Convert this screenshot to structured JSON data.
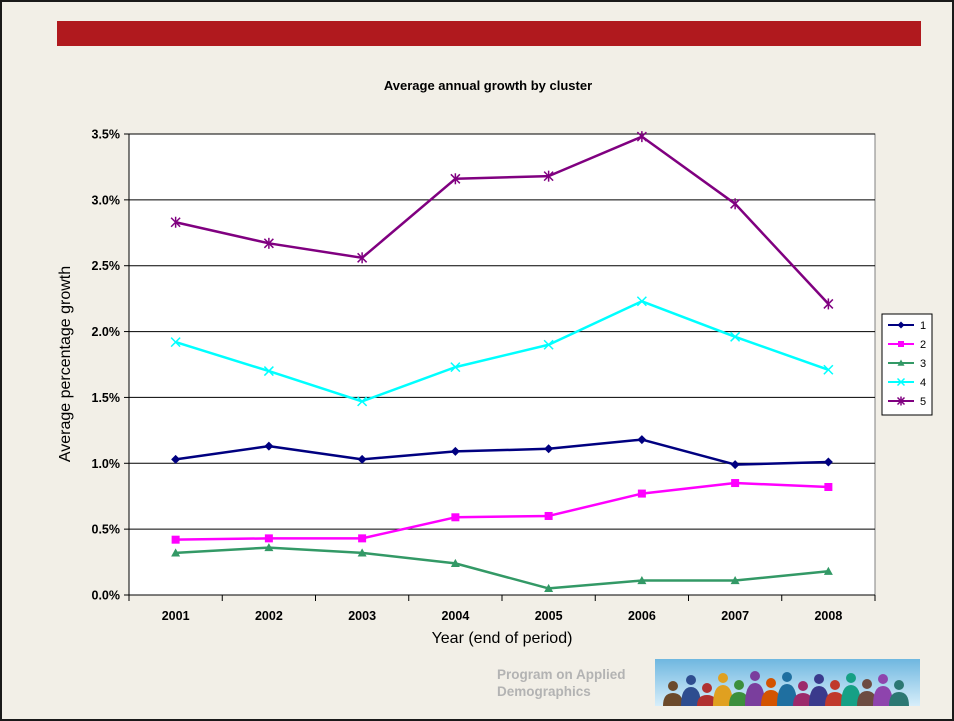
{
  "footer": {
    "org_line1": "Program on Applied",
    "org_line2": "Demographics"
  },
  "chart_data": {
    "type": "line",
    "title": "Average annual growth by cluster",
    "xlabel": "Year (end of period)",
    "ylabel": "Average percentage growth",
    "categories": [
      "2001",
      "2002",
      "2003",
      "2004",
      "2005",
      "2006",
      "2007",
      "2008"
    ],
    "ylim": [
      0,
      3.5
    ],
    "y_ticks": [
      "0.0%",
      "0.5%",
      "1.0%",
      "1.5%",
      "2.0%",
      "2.5%",
      "3.0%",
      "3.5%"
    ],
    "y_unit": "%",
    "grid": "horizontal",
    "legend_position": "right",
    "series": [
      {
        "name": "1",
        "color": "#000080",
        "marker": "diamond",
        "values": [
          1.03,
          1.13,
          1.03,
          1.09,
          1.11,
          1.18,
          0.99,
          1.01
        ]
      },
      {
        "name": "2",
        "color": "#ff00ff",
        "marker": "square",
        "values": [
          0.42,
          0.43,
          0.43,
          0.59,
          0.6,
          0.77,
          0.85,
          0.82
        ]
      },
      {
        "name": "3",
        "color": "#339966",
        "marker": "triangle",
        "values": [
          0.32,
          0.36,
          0.32,
          0.24,
          0.05,
          0.11,
          0.11,
          0.18
        ]
      },
      {
        "name": "4",
        "color": "#00ffff",
        "marker": "x",
        "values": [
          1.92,
          1.7,
          1.47,
          1.73,
          1.9,
          2.23,
          1.96,
          1.71
        ]
      },
      {
        "name": "5",
        "color": "#800080",
        "marker": "star",
        "values": [
          2.83,
          2.67,
          2.56,
          3.16,
          3.18,
          3.48,
          2.97,
          2.21
        ]
      }
    ]
  }
}
